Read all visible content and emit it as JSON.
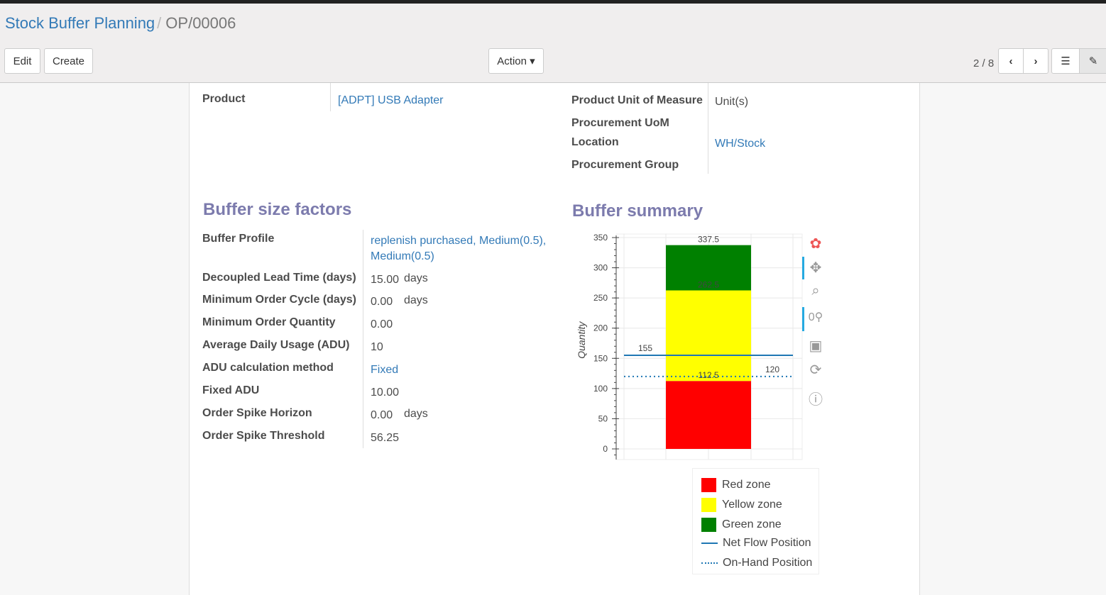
{
  "breadcrumb": {
    "parent": "Stock Buffer Planning",
    "current": "OP/00006"
  },
  "toolbar": {
    "edit": "Edit",
    "create": "Create",
    "action": "Action ▾",
    "pager": "2 / 8"
  },
  "form": {
    "product_label": "Product",
    "product_value": "[ADPT] USB Adapter",
    "uom_label": "Product Unit of Measure",
    "uom_value": "Unit(s)",
    "proc_uom_label": "Procurement UoM",
    "location_label": "Location",
    "location_value": "WH/Stock",
    "proc_group_label": "Procurement Group"
  },
  "factors": {
    "title": "Buffer size factors",
    "rows": [
      {
        "label": "Buffer Profile",
        "value": "replenish purchased, Medium(0.5),",
        "value2": "Medium(0.5)",
        "link": true
      },
      {
        "label": "Decoupled Lead Time (days)",
        "value": "15.00",
        "unit": "days"
      },
      {
        "label": "Minimum Order Cycle (days)",
        "value": "0.00",
        "unit": "days"
      },
      {
        "label": "Minimum Order Quantity",
        "value": "0.00"
      },
      {
        "label": "Average Daily Usage (ADU)",
        "value": "10"
      },
      {
        "label": "ADU calculation method",
        "value": "Fixed",
        "link": true
      },
      {
        "label": "Fixed ADU",
        "value": "10.00"
      },
      {
        "label": "Order Spike Horizon",
        "value": "0.00",
        "unit": "days"
      },
      {
        "label": "Order Spike Threshold",
        "value": "56.25"
      }
    ]
  },
  "summary": {
    "title": "Buffer summary"
  },
  "chart_data": {
    "type": "bar",
    "ylabel": "Quantity",
    "ylim": [
      0,
      350
    ],
    "yticks": [
      0,
      50,
      100,
      150,
      200,
      250,
      300,
      350
    ],
    "stacked_zones": [
      {
        "name": "Red zone",
        "from": 0,
        "to": 112.5,
        "color": "#ff0000"
      },
      {
        "name": "Yellow zone",
        "from": 112.5,
        "to": 262.5,
        "color": "#ffff00"
      },
      {
        "name": "Green zone",
        "from": 262.5,
        "to": 337.5,
        "color": "#008000"
      }
    ],
    "zone_labels": [
      "112.5",
      "262.5",
      "337.5"
    ],
    "lines": [
      {
        "name": "Net Flow Position",
        "value": 155,
        "label": "155",
        "style": "solid",
        "color": "#1f77b4"
      },
      {
        "name": "On-Hand Position",
        "value": 120,
        "label": "120",
        "style": "dotted",
        "color": "#1f77b4"
      }
    ],
    "grid": true,
    "legend": "bottom"
  }
}
